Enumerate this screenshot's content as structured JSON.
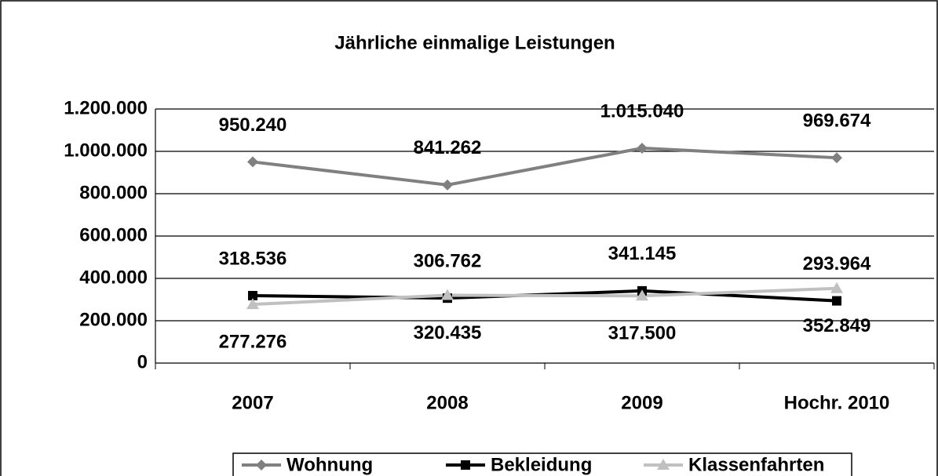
{
  "chart_data": {
    "type": "line",
    "title": "Jährliche einmalige Leistungen",
    "categories": [
      "2007",
      "2008",
      "2009",
      "Hochr. 2010"
    ],
    "series": [
      {
        "name": "Wohnung",
        "color": "#808080",
        "marker": "diamond",
        "label_position": "above",
        "values": [
          950240,
          841262,
          1015040,
          969674
        ],
        "value_labels": [
          "950.240",
          "841.262",
          "1.015.040",
          "969.674"
        ]
      },
      {
        "name": "Bekleidung",
        "color": "#000000",
        "marker": "square",
        "label_position": "above",
        "values": [
          318536,
          306762,
          341145,
          293964
        ],
        "value_labels": [
          "318.536",
          "306.762",
          "341.145",
          "293.964"
        ]
      },
      {
        "name": "Klassenfahrten",
        "color": "#c0c0c0",
        "marker": "triangle",
        "label_position": "below",
        "values": [
          277276,
          320435,
          317500,
          352849
        ],
        "value_labels": [
          "277.276",
          "320.435",
          "317.500",
          "352.849"
        ]
      }
    ],
    "ylim": [
      0,
      1200000
    ],
    "yticks": [
      0,
      {
        "value": 200000,
        "label": "200.000"
      },
      {
        "value": 400000,
        "label": "400.000"
      },
      {
        "value": 600000,
        "label": "600.000"
      },
      {
        "value": 800000,
        "label": "800.000"
      },
      {
        "value": 1000000,
        "label": "1.000.000"
      },
      {
        "value": 1200000,
        "label": "1.200.000"
      }
    ],
    "grid": true,
    "legend": "bottom"
  }
}
